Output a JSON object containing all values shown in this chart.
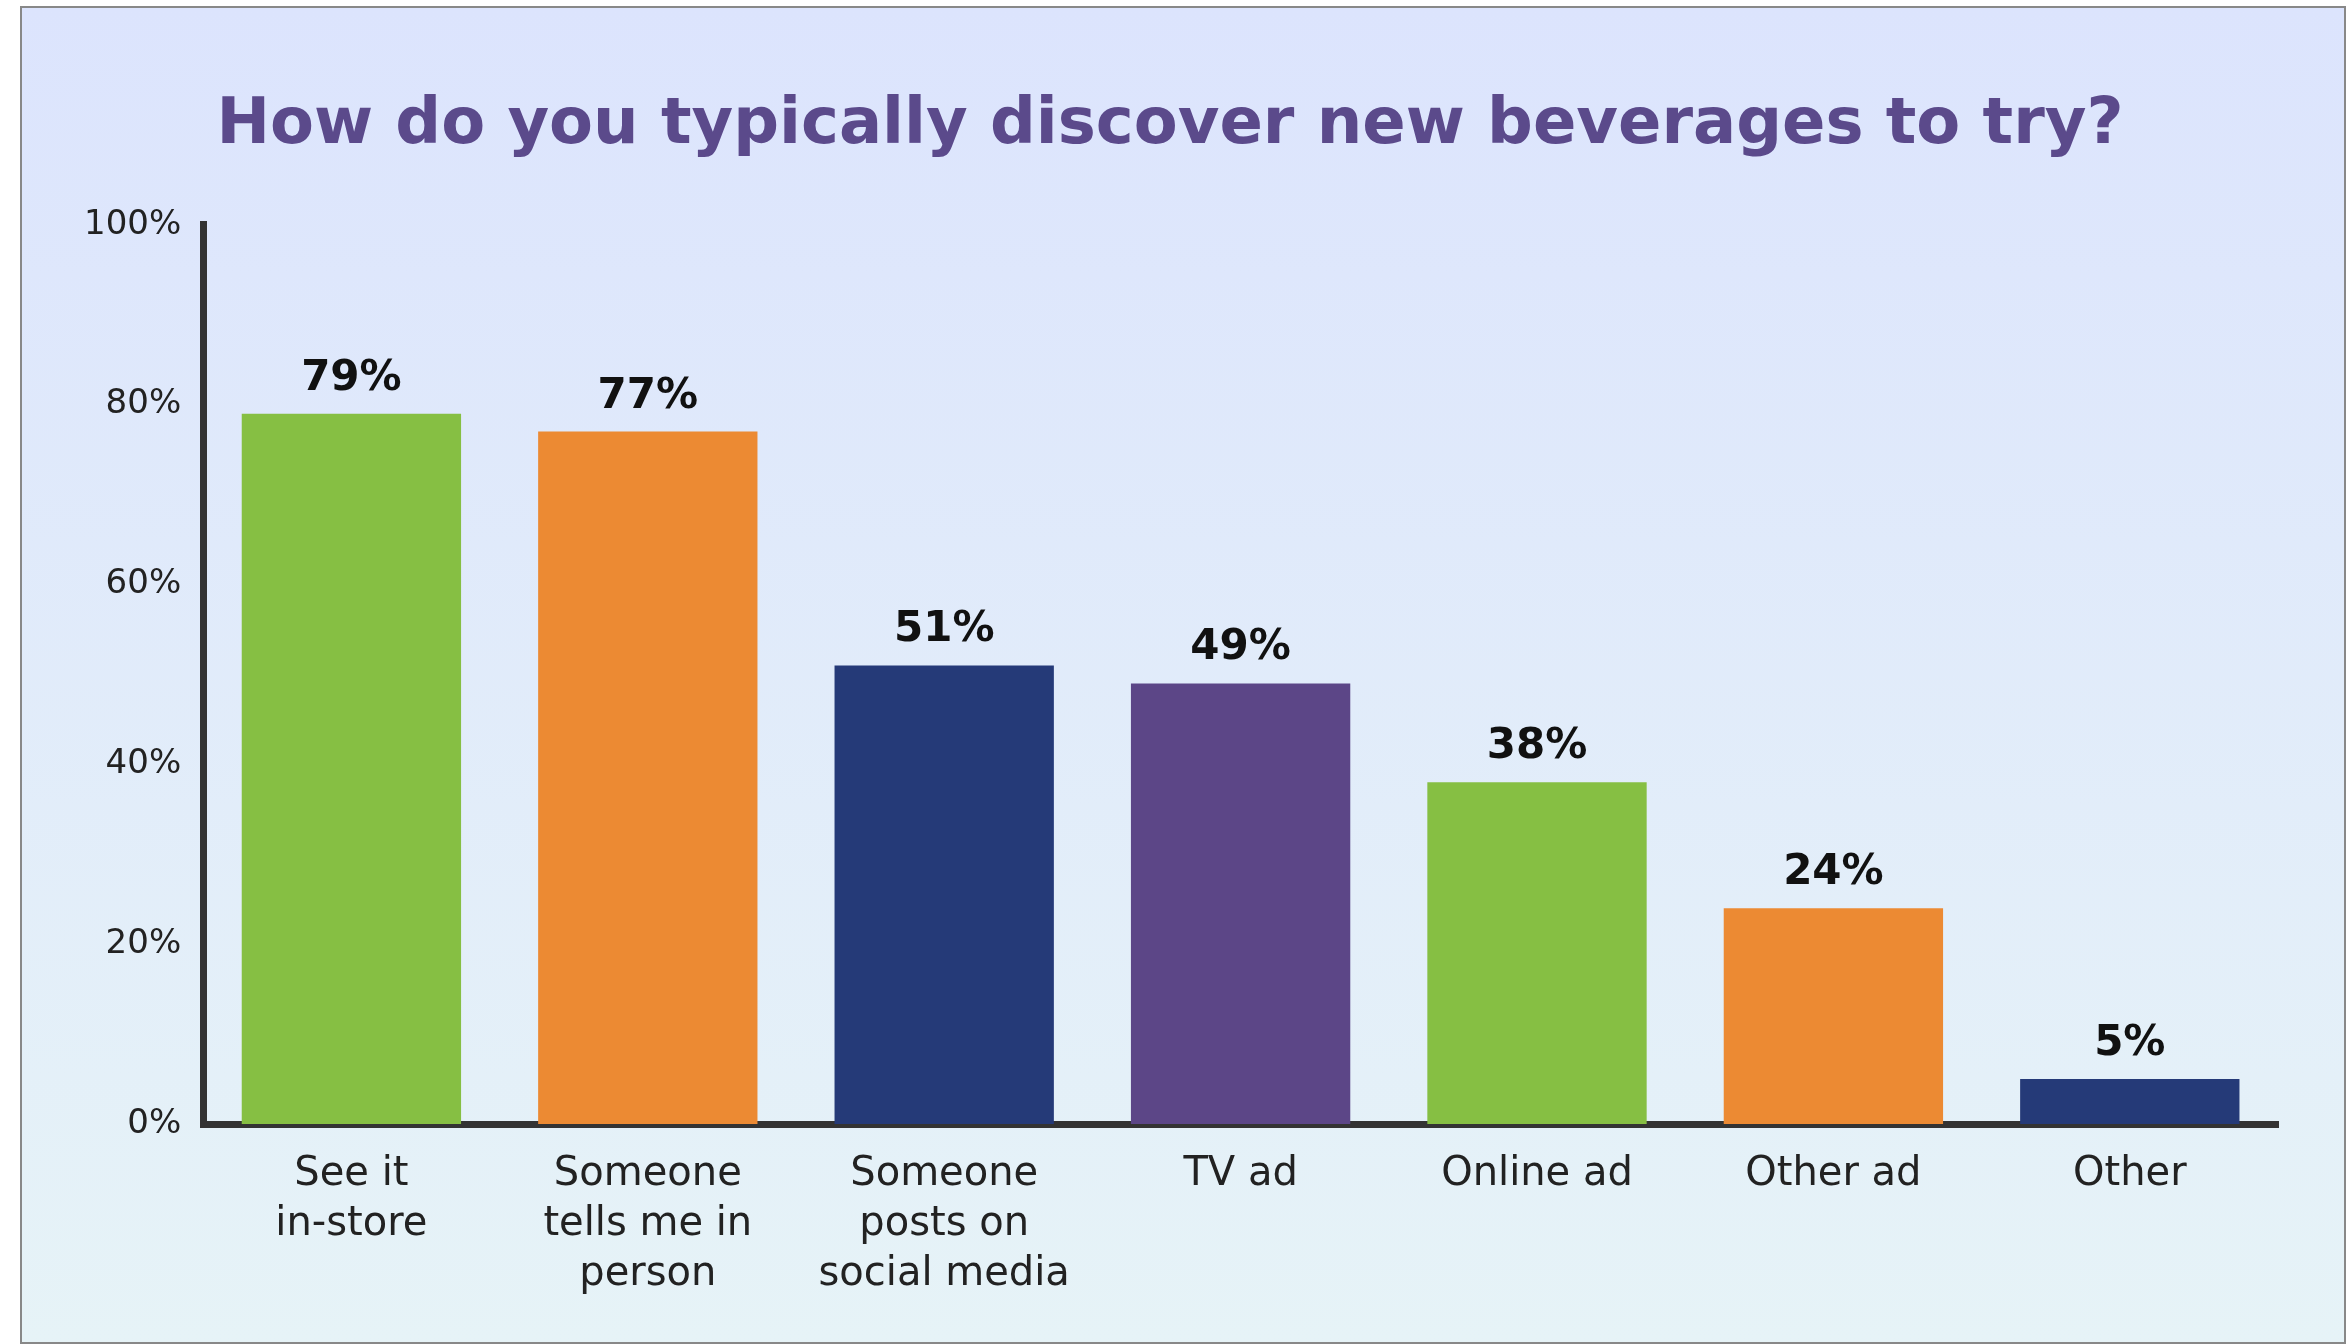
{
  "chart_data": {
    "type": "bar",
    "title": "How do you typically discover new beverages to try?",
    "categories": [
      "See it in-store",
      "Someone tells me in person",
      "Someone posts on social media",
      "TV ad",
      "Online ad",
      "Other ad",
      "Other"
    ],
    "values": [
      79,
      77,
      51,
      49,
      38,
      24,
      5
    ],
    "colors": [
      "#86bf43",
      "#ec8a33",
      "#253a78",
      "#5c4687",
      "#86bf43",
      "#ec8a33",
      "#253a78"
    ],
    "value_labels": [
      "79%",
      "77%",
      "51%",
      "49%",
      "38%",
      "24%",
      "5%"
    ],
    "ylim": [
      0,
      100
    ],
    "yticks": [
      {
        "value": 0,
        "label": "0%"
      },
      {
        "value": 20,
        "label": "20%"
      },
      {
        "value": 40,
        "label": "40%"
      },
      {
        "value": 60,
        "label": "60%"
      },
      {
        "value": 80,
        "label": "80%"
      },
      {
        "value": 100,
        "label": "100%"
      }
    ],
    "grid": false,
    "legend": false
  }
}
